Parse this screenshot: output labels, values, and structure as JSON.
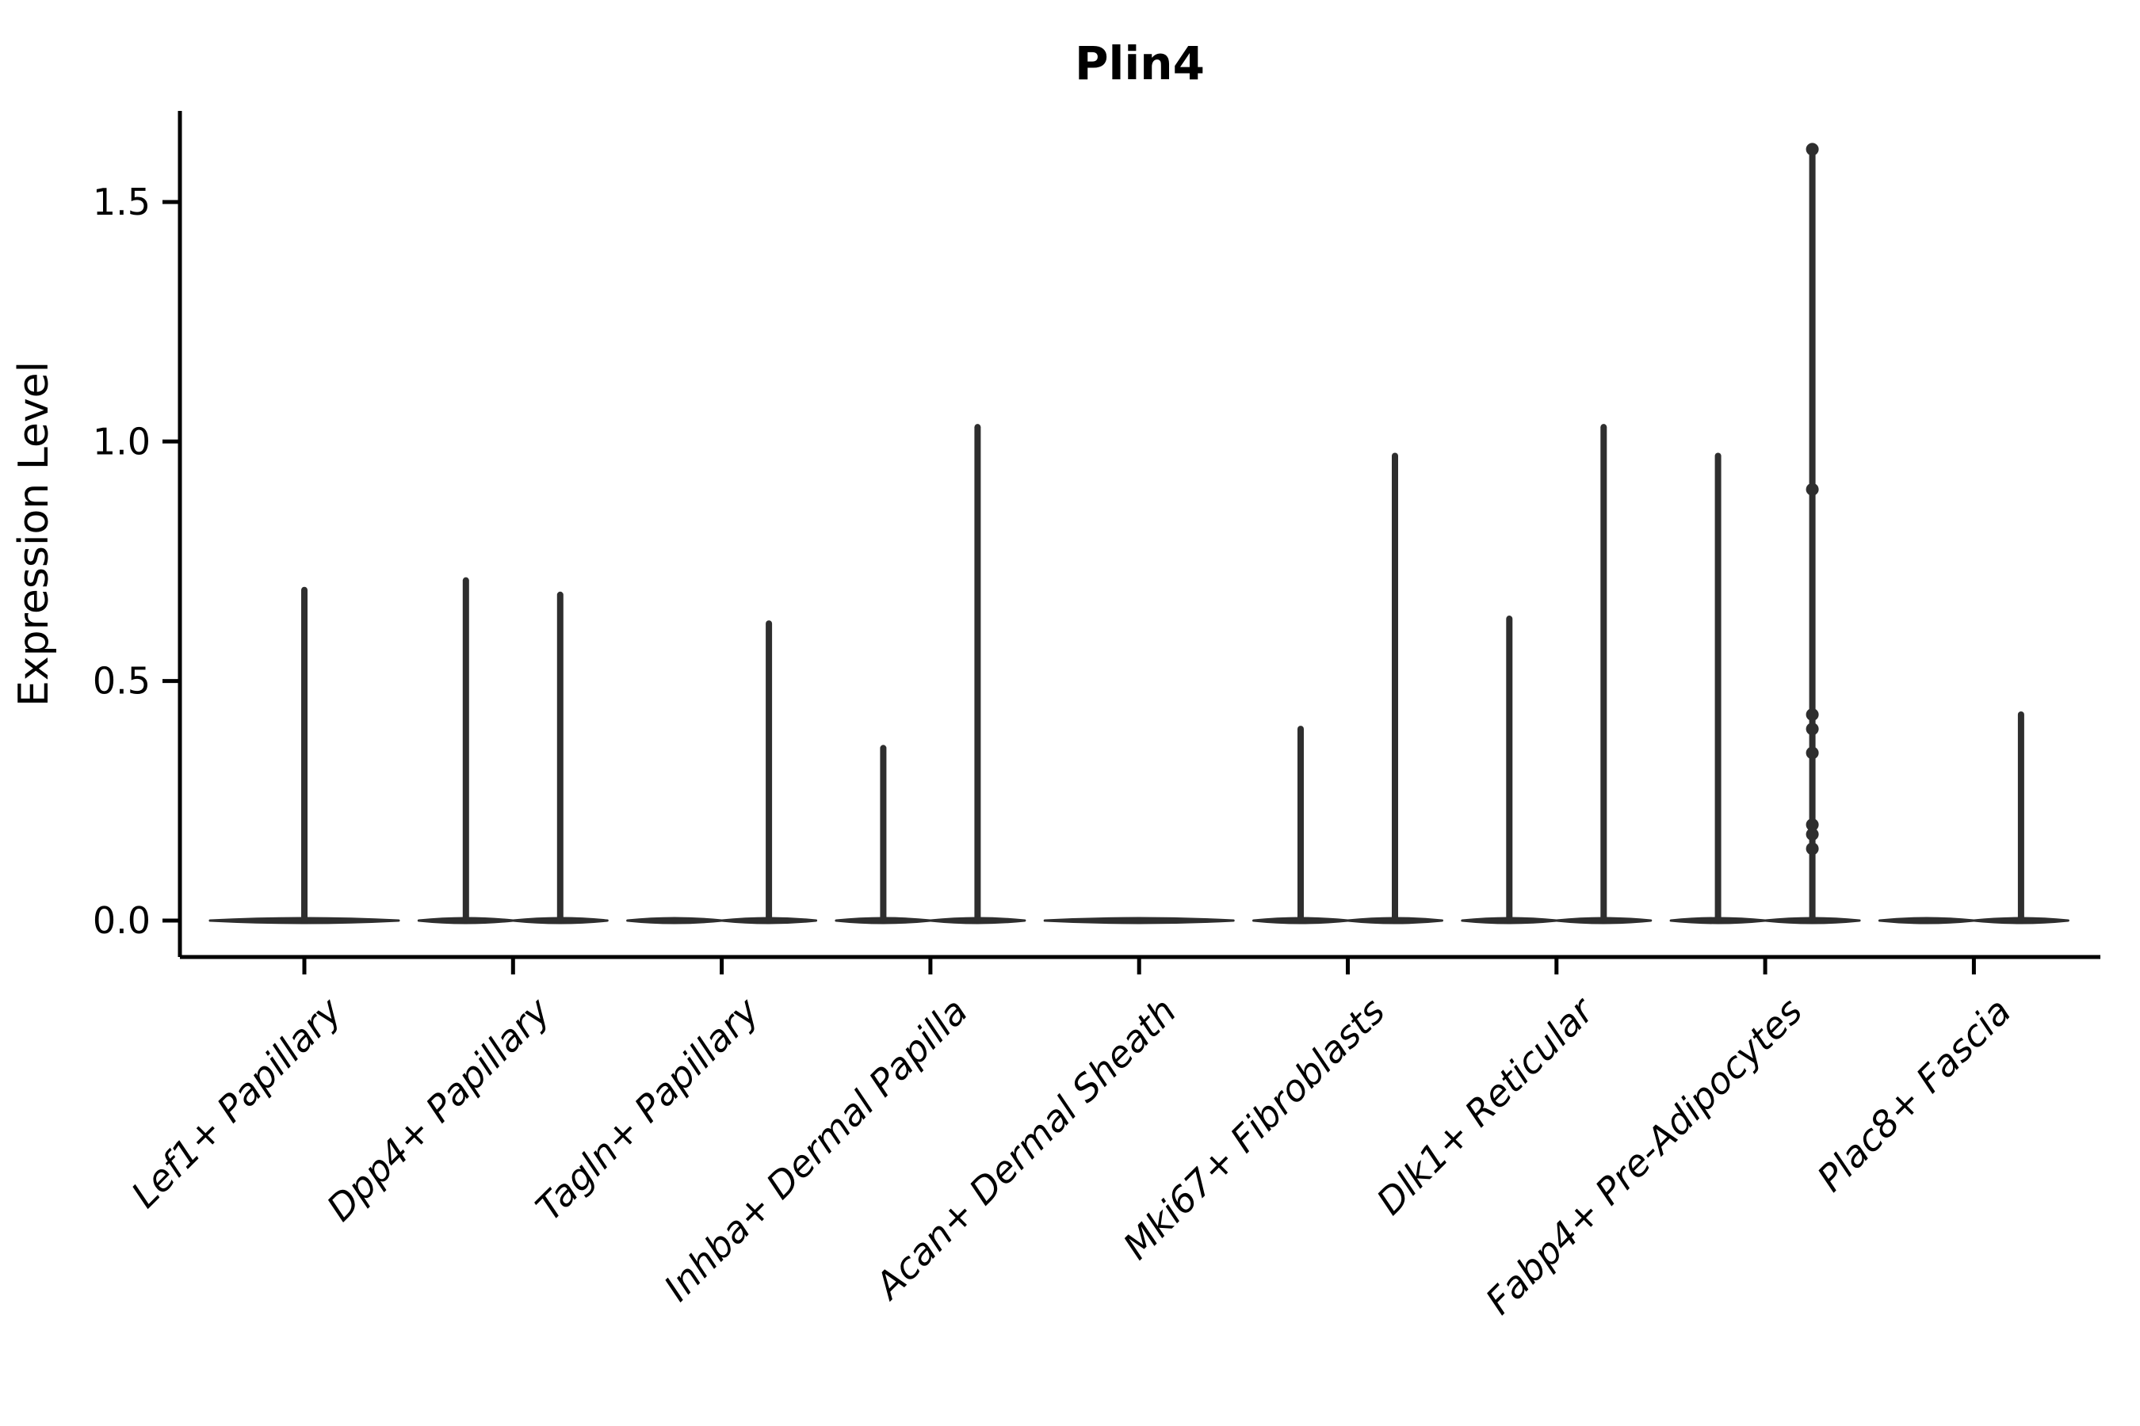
{
  "chart_data": {
    "type": "violin",
    "title": "Plin4",
    "ylabel": "Expression Level",
    "xlabel": "",
    "ylim": [
      0,
      1.65
    ],
    "grid": false,
    "legend": "none",
    "yticks": [
      {
        "label": "0.0",
        "value": 0.0
      },
      {
        "label": "0.5",
        "value": 0.5
      },
      {
        "label": "1.0",
        "value": 1.0
      },
      {
        "label": "1.5",
        "value": 1.5
      }
    ],
    "categories": [
      {
        "label": "Lef1+ Papillary",
        "violins": [
          {
            "position": "center",
            "max_expression": 0.69
          }
        ]
      },
      {
        "label": "Dpp4+ Papillary",
        "violins": [
          {
            "position": "left",
            "max_expression": 0.71
          },
          {
            "position": "right",
            "max_expression": 0.68
          }
        ]
      },
      {
        "label": "Tagln+ Papillary",
        "violins": [
          {
            "position": "left",
            "max_expression": 0
          },
          {
            "position": "right",
            "max_expression": 0.62
          }
        ]
      },
      {
        "label": "Inhba+ Dermal Papilla",
        "violins": [
          {
            "position": "left",
            "max_expression": 0.36
          },
          {
            "position": "right",
            "max_expression": 1.03
          }
        ]
      },
      {
        "label": "Acan+ Dermal Sheath",
        "violins": [
          {
            "position": "center",
            "max_expression": 0
          }
        ]
      },
      {
        "label": "Mki67+ Fibroblasts",
        "violins": [
          {
            "position": "left",
            "max_expression": 0.4
          },
          {
            "position": "right",
            "max_expression": 0.97
          }
        ]
      },
      {
        "label": "Dlk1+ Reticular",
        "violins": [
          {
            "position": "left",
            "max_expression": 0.63
          },
          {
            "position": "right",
            "max_expression": 1.03
          }
        ]
      },
      {
        "label": "Fabp4+ Pre-Adipocytes",
        "violins": [
          {
            "position": "left",
            "max_expression": 0.97
          },
          {
            "position": "right",
            "max_expression": 1.61,
            "points": [
              1.61,
              0.9,
              0.43,
              0.4,
              0.35,
              0.2,
              0.18,
              0.15
            ]
          }
        ]
      },
      {
        "label": "Plac8+ Fascia",
        "violins": [
          {
            "position": "left",
            "max_expression": 0
          },
          {
            "position": "right",
            "max_expression": 0.43
          }
        ]
      }
    ],
    "colors": {
      "violin_ink": "#2e2e2e",
      "axis": "#000000",
      "text": "#000000",
      "background": "#ffffff"
    }
  }
}
